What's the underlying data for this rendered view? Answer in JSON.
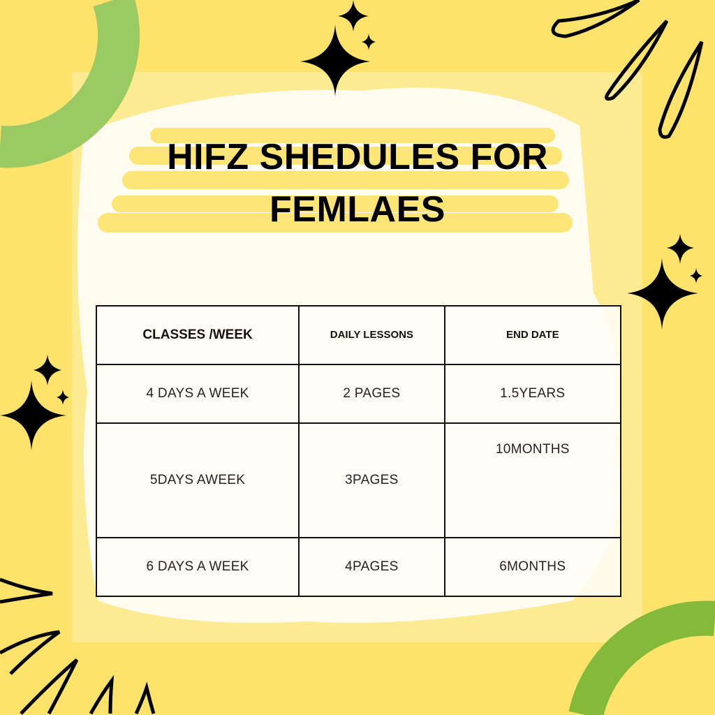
{
  "title": {
    "line1": "HIFZ SHEDULES FOR",
    "line2": "FEMLAES"
  },
  "table": {
    "headers": [
      "CLASSES /WEEK",
      "DAILY LESSONS",
      "END DATE"
    ],
    "rows": [
      [
        "4 DAYS A WEEK",
        "2 PAGES",
        "1.5YEARS"
      ],
      [
        "5DAYS AWEEK",
        "3PAGES",
        "10MONTHS"
      ],
      [
        "6 DAYS A WEEK",
        "4PAGES",
        "6MONTHS"
      ]
    ]
  },
  "colors": {
    "background": "#fde36c",
    "green_top": "#9bc963",
    "green_bottom": "#84b93a",
    "ink": "#000000"
  },
  "icons": [
    "sparkle-icon",
    "teardrop-doodle",
    "burst-lines"
  ]
}
